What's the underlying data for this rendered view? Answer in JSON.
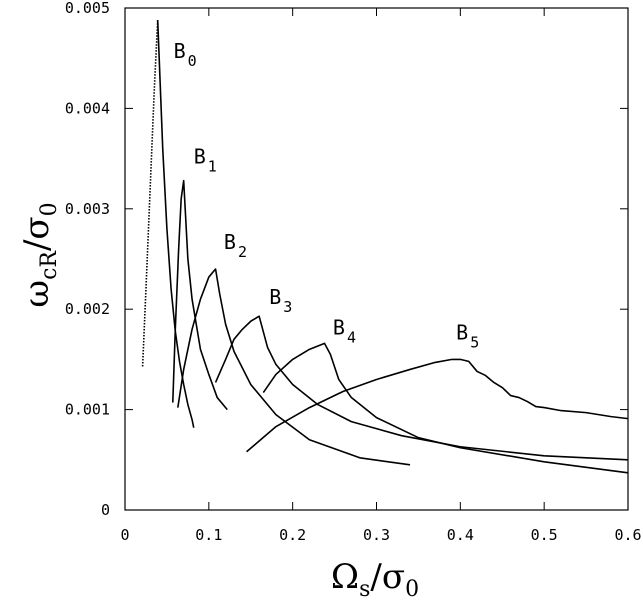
{
  "chart_data": {
    "type": "line",
    "title": "",
    "xlabel": {
      "main": "Ω",
      "sub": "s",
      "after": "/σ",
      "after_sub": "0"
    },
    "ylabel": {
      "main": "ω",
      "sub": "cR",
      "after": "/σ",
      "after_sub": "0"
    },
    "xlim": [
      0,
      0.6
    ],
    "ylim": [
      0,
      0.005
    ],
    "grid": false,
    "x_ticks": [
      {
        "value": 0,
        "label": "0"
      },
      {
        "value": 0.1,
        "label": "0.1"
      },
      {
        "value": 0.2,
        "label": "0.2"
      },
      {
        "value": 0.3,
        "label": "0.3"
      },
      {
        "value": 0.4,
        "label": "0.4"
      },
      {
        "value": 0.5,
        "label": "0.5"
      },
      {
        "value": 0.6,
        "label": "0.6"
      }
    ],
    "y_ticks": [
      {
        "value": 0,
        "label": "0"
      },
      {
        "value": 0.001,
        "label": "0.001"
      },
      {
        "value": 0.002,
        "label": "0.002"
      },
      {
        "value": 0.003,
        "label": "0.003"
      },
      {
        "value": 0.004,
        "label": "0.004"
      },
      {
        "value": 0.005,
        "label": "0.005"
      }
    ],
    "series": [
      {
        "name": "B",
        "sub": "0",
        "dotted_rise": true,
        "label_at": [
          0.058,
          0.0045
        ],
        "points": [
          [
            0.021,
            0.00143
          ],
          [
            0.025,
            0.0022
          ],
          [
            0.03,
            0.0032
          ],
          [
            0.035,
            0.0042
          ],
          [
            0.039,
            0.00488
          ],
          [
            0.045,
            0.0036
          ],
          [
            0.05,
            0.0028
          ],
          [
            0.055,
            0.0022
          ],
          [
            0.06,
            0.00178
          ],
          [
            0.065,
            0.00148
          ],
          [
            0.07,
            0.00125
          ],
          [
            0.075,
            0.00105
          ],
          [
            0.08,
            0.0009
          ],
          [
            0.082,
            0.00082
          ]
        ]
      },
      {
        "name": "B",
        "sub": "1",
        "label_at": [
          0.082,
          0.00345
        ],
        "points": [
          [
            0.057,
            0.00107
          ],
          [
            0.06,
            0.0018
          ],
          [
            0.064,
            0.0026
          ],
          [
            0.067,
            0.0031
          ],
          [
            0.07,
            0.00328
          ],
          [
            0.075,
            0.0025
          ],
          [
            0.08,
            0.0021
          ],
          [
            0.09,
            0.0016
          ],
          [
            0.1,
            0.00135
          ],
          [
            0.11,
            0.00112
          ],
          [
            0.122,
            0.001
          ]
        ]
      },
      {
        "name": "B",
        "sub": "2",
        "label_at": [
          0.118,
          0.0026
        ],
        "points": [
          [
            0.063,
            0.00102
          ],
          [
            0.07,
            0.0014
          ],
          [
            0.08,
            0.0018
          ],
          [
            0.09,
            0.0021
          ],
          [
            0.1,
            0.00232
          ],
          [
            0.108,
            0.0024
          ],
          [
            0.113,
            0.00215
          ],
          [
            0.12,
            0.00185
          ],
          [
            0.13,
            0.00158
          ],
          [
            0.15,
            0.00125
          ],
          [
            0.18,
            0.00095
          ],
          [
            0.22,
            0.0007
          ],
          [
            0.28,
            0.00052
          ],
          [
            0.34,
            0.00045
          ]
        ]
      },
      {
        "name": "B",
        "sub": "3",
        "label_at": [
          0.172,
          0.00205
        ],
        "points": [
          [
            0.108,
            0.00127
          ],
          [
            0.12,
            0.0015
          ],
          [
            0.13,
            0.0017
          ],
          [
            0.14,
            0.0018
          ],
          [
            0.15,
            0.00188
          ],
          [
            0.16,
            0.00193
          ],
          [
            0.17,
            0.00162
          ],
          [
            0.18,
            0.00145
          ],
          [
            0.2,
            0.00125
          ],
          [
            0.23,
            0.00105
          ],
          [
            0.27,
            0.00088
          ],
          [
            0.33,
            0.00074
          ],
          [
            0.4,
            0.00063
          ],
          [
            0.5,
            0.00054
          ],
          [
            0.6,
            0.0005
          ]
        ]
      },
      {
        "name": "B",
        "sub": "4",
        "label_at": [
          0.248,
          0.00175
        ],
        "points": [
          [
            0.165,
            0.00117
          ],
          [
            0.18,
            0.00135
          ],
          [
            0.2,
            0.0015
          ],
          [
            0.22,
            0.0016
          ],
          [
            0.238,
            0.00166
          ],
          [
            0.245,
            0.00155
          ],
          [
            0.255,
            0.0013
          ],
          [
            0.27,
            0.00112
          ],
          [
            0.3,
            0.00092
          ],
          [
            0.35,
            0.00072
          ],
          [
            0.4,
            0.00062
          ],
          [
            0.5,
            0.00048
          ],
          [
            0.6,
            0.00037
          ]
        ]
      },
      {
        "name": "B",
        "sub": "5",
        "label_at": [
          0.395,
          0.0017
        ],
        "points": [
          [
            0.145,
            0.00058
          ],
          [
            0.18,
            0.00083
          ],
          [
            0.22,
            0.00102
          ],
          [
            0.26,
            0.00118
          ],
          [
            0.3,
            0.0013
          ],
          [
            0.34,
            0.0014
          ],
          [
            0.37,
            0.00147
          ],
          [
            0.39,
            0.0015
          ],
          [
            0.4,
            0.0015
          ],
          [
            0.41,
            0.00148
          ],
          [
            0.42,
            0.00138
          ],
          [
            0.43,
            0.00134
          ],
          [
            0.44,
            0.00127
          ],
          [
            0.45,
            0.00122
          ],
          [
            0.46,
            0.00114
          ],
          [
            0.47,
            0.00112
          ],
          [
            0.48,
            0.00108
          ],
          [
            0.49,
            0.00103
          ],
          [
            0.5,
            0.00102
          ],
          [
            0.52,
            0.00099
          ],
          [
            0.55,
            0.00097
          ],
          [
            0.58,
            0.00093
          ],
          [
            0.6,
            0.00091
          ]
        ]
      }
    ]
  }
}
